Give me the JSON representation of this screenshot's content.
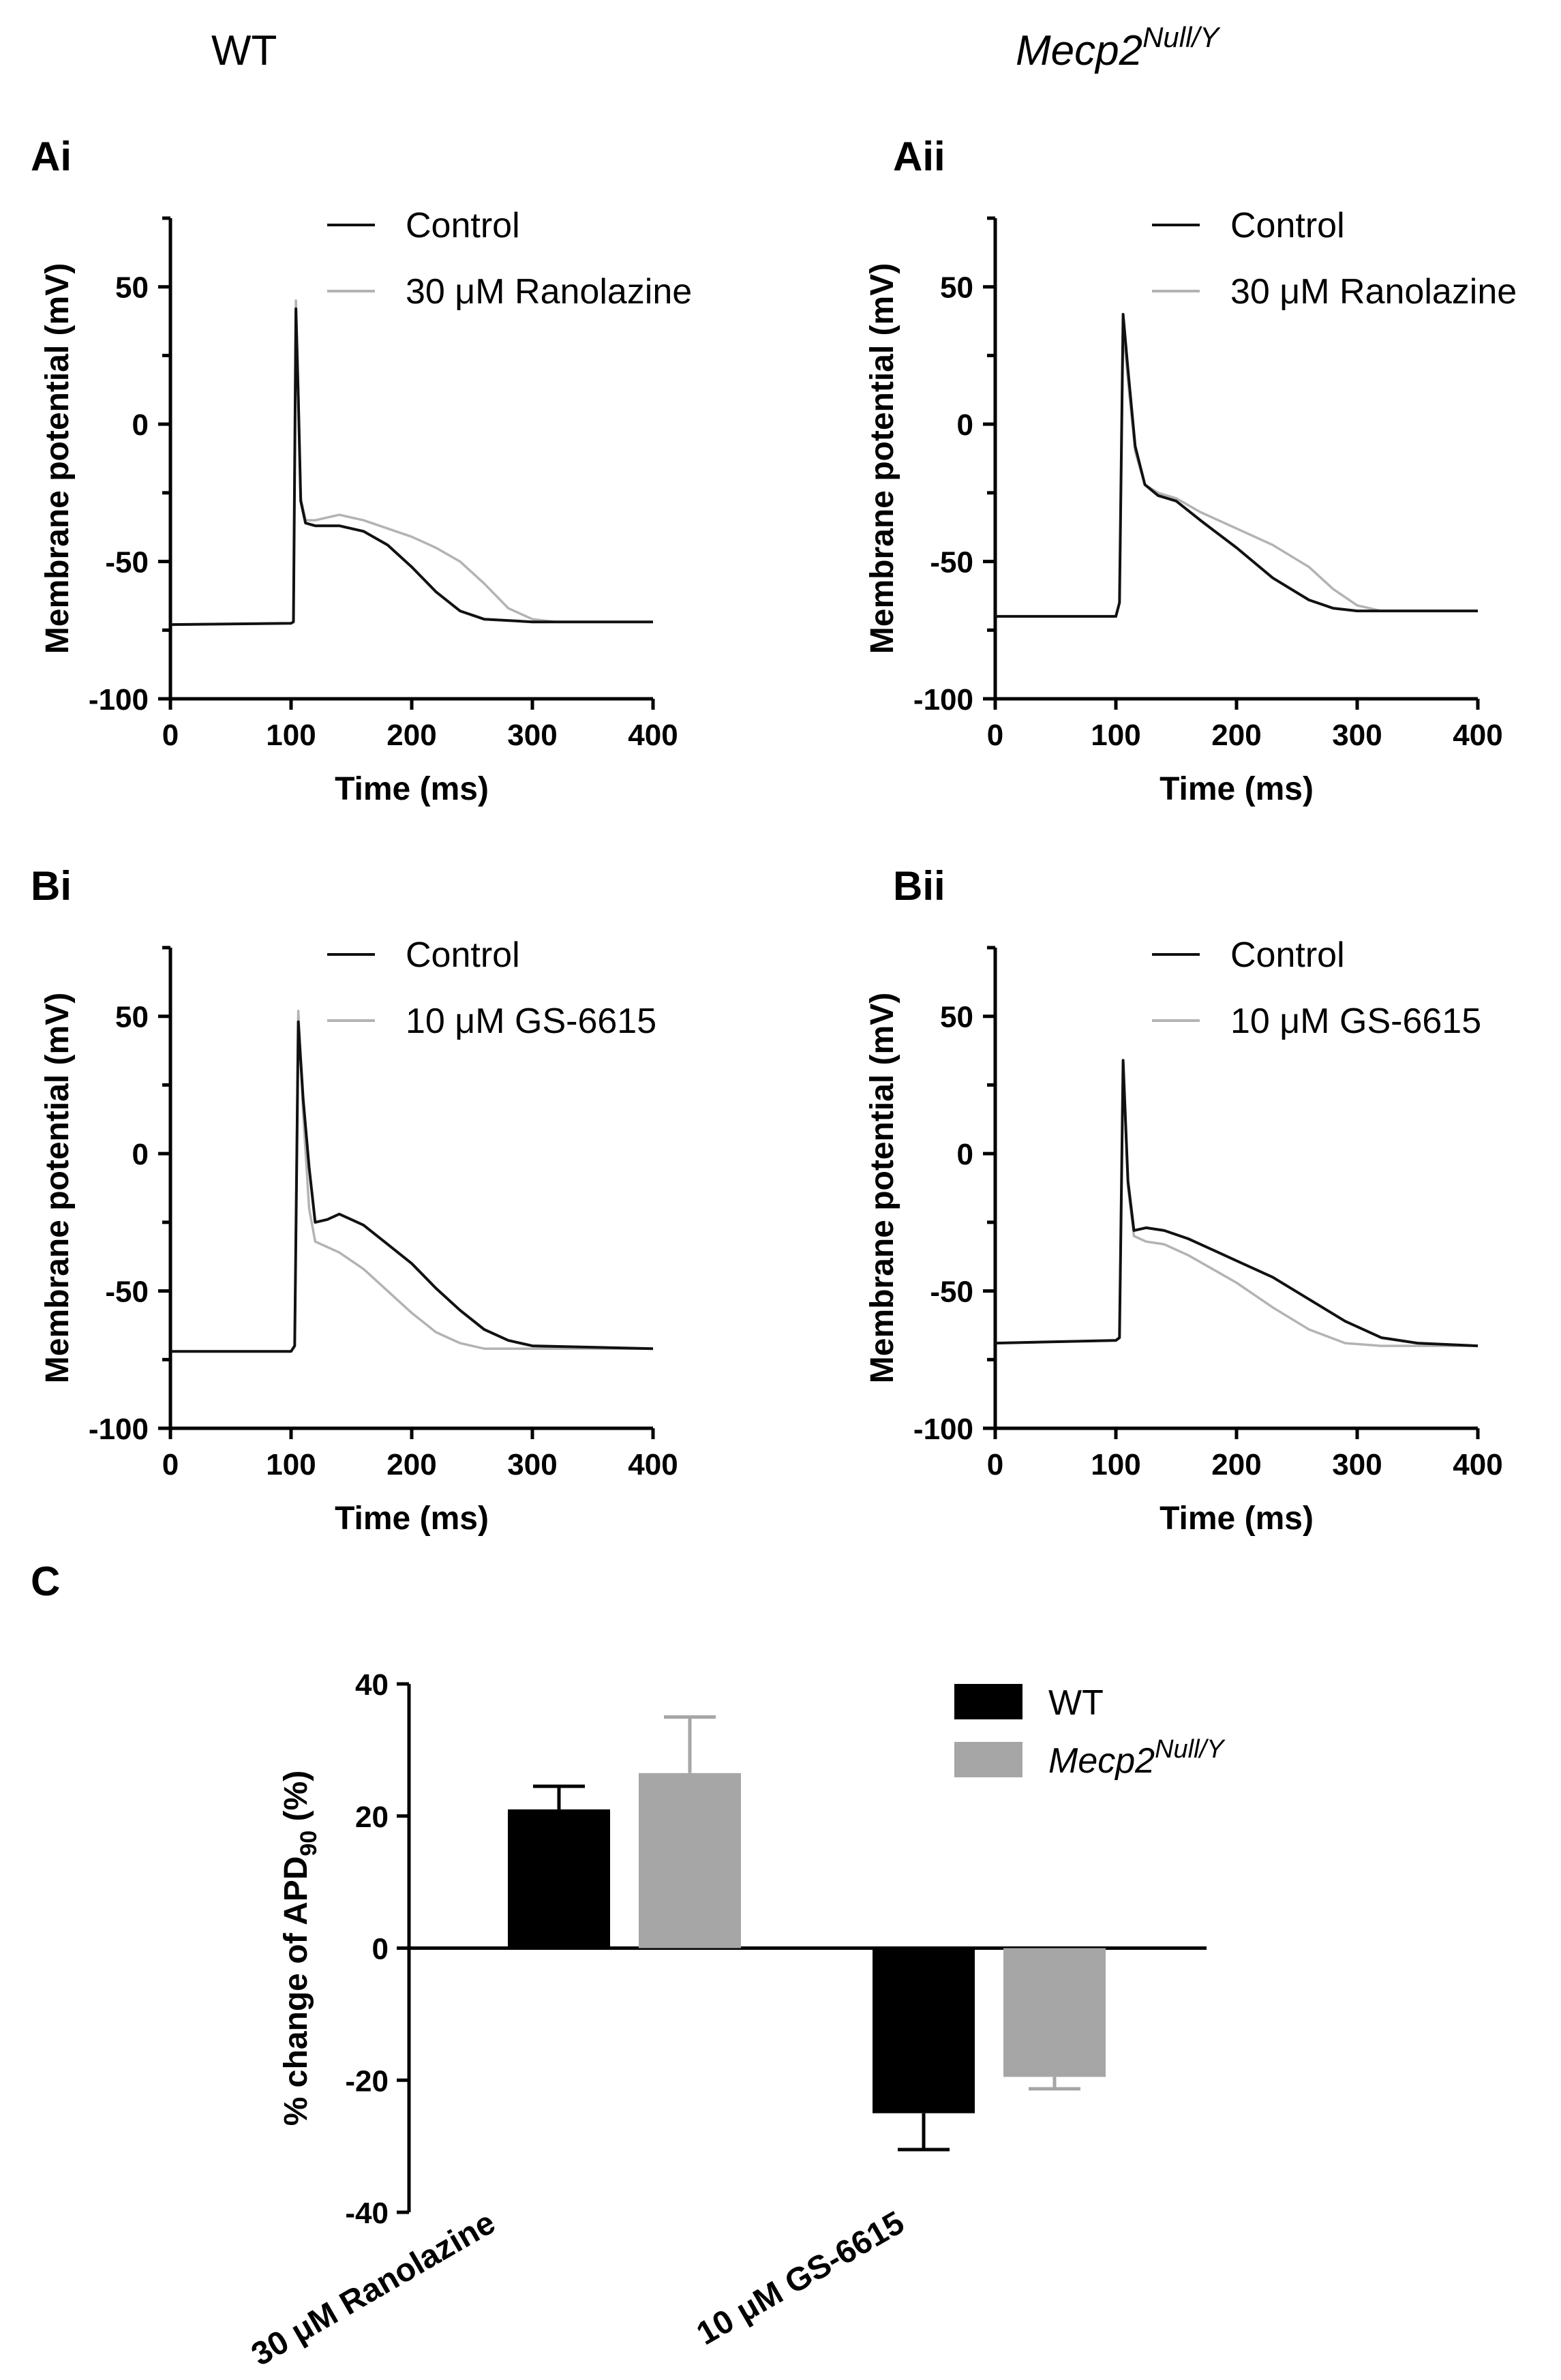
{
  "figure": {
    "col_left": "WT",
    "col_right_base": "Mecp2",
    "col_right_sup": "Null/Y"
  },
  "colors": {
    "control": "#111111",
    "drug": "#b3b3b3",
    "wt_bar": "#000000",
    "mecp2_bar": "#a6a6a6"
  },
  "chart_data": [
    {
      "id": "Ai",
      "label": "Ai",
      "type": "line",
      "xlabel": "Time (ms)",
      "ylabel": "Membrane potential (mV)",
      "xlim": [
        0,
        400
      ],
      "ylim": [
        -100,
        75
      ],
      "xticks": [
        "0",
        "100",
        "200",
        "300",
        "400"
      ],
      "yticks": [
        "-100",
        "-50",
        "0",
        "50"
      ],
      "series": [
        {
          "name": "Control",
          "color": "#111111",
          "points": [
            [
              0,
              -73
            ],
            [
              100,
              -72.5
            ],
            [
              102,
              -72
            ],
            [
              104,
              42
            ],
            [
              106,
              10
            ],
            [
              108,
              -28
            ],
            [
              112,
              -36
            ],
            [
              120,
              -37
            ],
            [
              140,
              -37
            ],
            [
              160,
              -39
            ],
            [
              180,
              -44
            ],
            [
              200,
              -52
            ],
            [
              220,
              -61
            ],
            [
              240,
              -68
            ],
            [
              260,
              -71
            ],
            [
              300,
              -72
            ],
            [
              400,
              -72
            ]
          ]
        },
        {
          "name": "30 μM Ranolazine",
          "color": "#b3b3b3",
          "points": [
            [
              0,
              -73
            ],
            [
              100,
              -72.5
            ],
            [
              102,
              -72
            ],
            [
              104,
              45
            ],
            [
              106,
              12
            ],
            [
              108,
              -27
            ],
            [
              112,
              -35
            ],
            [
              120,
              -35
            ],
            [
              140,
              -33
            ],
            [
              160,
              -35
            ],
            [
              180,
              -38
            ],
            [
              200,
              -41
            ],
            [
              220,
              -45
            ],
            [
              240,
              -50
            ],
            [
              260,
              -58
            ],
            [
              280,
              -67
            ],
            [
              300,
              -71
            ],
            [
              320,
              -72
            ],
            [
              400,
              -72
            ]
          ]
        }
      ]
    },
    {
      "id": "Aii",
      "label": "Aii",
      "type": "line",
      "xlabel": "Time (ms)",
      "ylabel": "Membrane potential (mV)",
      "xlim": [
        0,
        400
      ],
      "ylim": [
        -100,
        75
      ],
      "xticks": [
        "0",
        "100",
        "200",
        "300",
        "400"
      ],
      "yticks": [
        "-100",
        "-50",
        "0",
        "50"
      ],
      "series": [
        {
          "name": "Control",
          "color": "#111111",
          "points": [
            [
              0,
              -70
            ],
            [
              100,
              -70
            ],
            [
              103,
              -65
            ],
            [
              106,
              40
            ],
            [
              110,
              20
            ],
            [
              116,
              -8
            ],
            [
              124,
              -22
            ],
            [
              135,
              -26
            ],
            [
              150,
              -28
            ],
            [
              170,
              -35
            ],
            [
              200,
              -45
            ],
            [
              230,
              -56
            ],
            [
              260,
              -64
            ],
            [
              280,
              -67
            ],
            [
              300,
              -68
            ],
            [
              400,
              -68
            ]
          ]
        },
        {
          "name": "30 μM Ranolazine",
          "color": "#b3b3b3",
          "points": [
            [
              0,
              -70
            ],
            [
              100,
              -70
            ],
            [
              103,
              -65
            ],
            [
              106,
              35
            ],
            [
              110,
              16
            ],
            [
              116,
              -10
            ],
            [
              124,
              -22
            ],
            [
              135,
              -25
            ],
            [
              150,
              -27
            ],
            [
              170,
              -32
            ],
            [
              200,
              -38
            ],
            [
              230,
              -44
            ],
            [
              260,
              -52
            ],
            [
              280,
              -60
            ],
            [
              300,
              -66
            ],
            [
              320,
              -68
            ],
            [
              400,
              -68
            ]
          ]
        }
      ]
    },
    {
      "id": "Bi",
      "label": "Bi",
      "type": "line",
      "xlabel": "Time (ms)",
      "ylabel": "Membrane potential (mV)",
      "xlim": [
        0,
        400
      ],
      "ylim": [
        -100,
        75
      ],
      "xticks": [
        "0",
        "100",
        "200",
        "300",
        "400"
      ],
      "yticks": [
        "-100",
        "-50",
        "0",
        "50"
      ],
      "series": [
        {
          "name": "Control",
          "color": "#111111",
          "points": [
            [
              0,
              -72
            ],
            [
              100,
              -72
            ],
            [
              103,
              -70
            ],
            [
              106,
              48
            ],
            [
              110,
              20
            ],
            [
              115,
              -5
            ],
            [
              120,
              -25
            ],
            [
              130,
              -24
            ],
            [
              140,
              -22
            ],
            [
              160,
              -26
            ],
            [
              180,
              -33
            ],
            [
              200,
              -40
            ],
            [
              220,
              -49
            ],
            [
              240,
              -57
            ],
            [
              260,
              -64
            ],
            [
              280,
              -68
            ],
            [
              300,
              -70
            ],
            [
              400,
              -71
            ]
          ]
        },
        {
          "name": "10 μM GS-6615",
          "color": "#b3b3b3",
          "points": [
            [
              0,
              -72
            ],
            [
              100,
              -72
            ],
            [
              103,
              -70
            ],
            [
              106,
              52
            ],
            [
              110,
              15
            ],
            [
              115,
              -20
            ],
            [
              120,
              -32
            ],
            [
              130,
              -34
            ],
            [
              140,
              -36
            ],
            [
              160,
              -42
            ],
            [
              180,
              -50
            ],
            [
              200,
              -58
            ],
            [
              220,
              -65
            ],
            [
              240,
              -69
            ],
            [
              260,
              -71
            ],
            [
              400,
              -71
            ]
          ]
        }
      ]
    },
    {
      "id": "Bii",
      "label": "Bii",
      "type": "line",
      "xlabel": "Time (ms)",
      "ylabel": "Membrane potential (mV)",
      "xlim": [
        0,
        400
      ],
      "ylim": [
        -100,
        75
      ],
      "xticks": [
        "0",
        "100",
        "200",
        "300",
        "400"
      ],
      "yticks": [
        "-100",
        "-50",
        "0",
        "50"
      ],
      "series": [
        {
          "name": "Control",
          "color": "#111111",
          "points": [
            [
              0,
              -69
            ],
            [
              100,
              -68
            ],
            [
              103,
              -67
            ],
            [
              106,
              34
            ],
            [
              110,
              -10
            ],
            [
              115,
              -28
            ],
            [
              125,
              -27
            ],
            [
              140,
              -28
            ],
            [
              160,
              -31
            ],
            [
              180,
              -35
            ],
            [
              200,
              -39
            ],
            [
              230,
              -45
            ],
            [
              260,
              -53
            ],
            [
              290,
              -61
            ],
            [
              320,
              -67
            ],
            [
              350,
              -69
            ],
            [
              400,
              -70
            ]
          ]
        },
        {
          "name": "10 μM GS-6615",
          "color": "#b3b3b3",
          "points": [
            [
              0,
              -69
            ],
            [
              100,
              -68
            ],
            [
              103,
              -67
            ],
            [
              106,
              33
            ],
            [
              110,
              -12
            ],
            [
              115,
              -30
            ],
            [
              125,
              -32
            ],
            [
              140,
              -33
            ],
            [
              160,
              -37
            ],
            [
              180,
              -42
            ],
            [
              200,
              -47
            ],
            [
              230,
              -56
            ],
            [
              260,
              -64
            ],
            [
              290,
              -69
            ],
            [
              320,
              -70
            ],
            [
              400,
              -70
            ]
          ]
        }
      ]
    },
    {
      "id": "C",
      "label": "C",
      "type": "bar",
      "ylabel_prefix": "% change of APD",
      "ylabel_sub": "90",
      "ylabel_suffix": " (%)",
      "ylim": [
        -40,
        40
      ],
      "yticks": [
        "-40",
        "-20",
        "0",
        "20",
        "40"
      ],
      "categories": [
        "30 μM Ranolazine",
        "10 μM GS-6615"
      ],
      "series": [
        {
          "name": "WT",
          "color": "#000000",
          "values": [
            21,
            -25
          ],
          "errors": [
            3.5,
            5.5
          ]
        },
        {
          "name_base": "Mecp2",
          "name_sup": "Null/Y",
          "color": "#a6a6a6",
          "values": [
            26.5,
            -19.5
          ],
          "errors": [
            8.5,
            1.8
          ]
        }
      ]
    }
  ]
}
